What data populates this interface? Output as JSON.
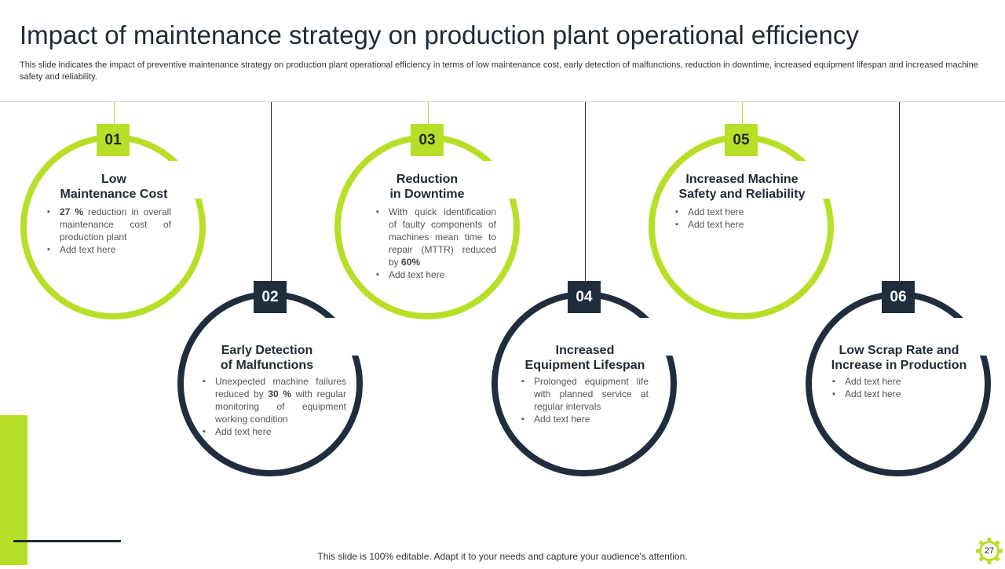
{
  "slide": {
    "title": "Impact of maintenance strategy on production plant operational efficiency",
    "subtitle": "This slide indicates the impact of preventive maintenance strategy on production plant operational efficiency in terms of low maintenance cost, early detection of malfunctions, reduction in downtime, increased equipment lifespan and increased machine safety and reliability.",
    "footer": "This slide is 100% editable. Adapt it to your needs and capture your audience's attention.",
    "page_number": "27"
  },
  "colors": {
    "accent": "#b8df28",
    "dark": "#1f2d3d"
  },
  "cards": [
    {
      "number": "01",
      "title_line1": "Low",
      "title_line2": "Maintenance Cost",
      "bullets": [
        {
          "bold": "27 %",
          "text": " reduction in overall maintenance cost of production plant"
        },
        {
          "bold": "",
          "text": "Add text here"
        }
      ]
    },
    {
      "number": "02",
      "title_line1": "Early Detection",
      "title_line2": "of Malfunctions",
      "bullets": [
        {
          "pre": "Unexpected machine failures reduced by ",
          "bold": "30 %",
          "text": " with regular monitoring of equipment working condition"
        },
        {
          "pre": "",
          "bold": "",
          "text": "Add text here"
        }
      ]
    },
    {
      "number": "03",
      "title_line1": "Reduction",
      "title_line2": "in Downtime",
      "bullets": [
        {
          "pre": "With quick identification of faulty components of machines mean time to repair (MTTR) reduced by ",
          "bold": "60%",
          "text": ""
        },
        {
          "pre": "",
          "bold": "",
          "text": "Add text here"
        }
      ]
    },
    {
      "number": "04",
      "title_line1": "Increased",
      "title_line2": "Equipment Lifespan",
      "bullets": [
        {
          "text": "Prolonged equipment life with planned service at regular intervals"
        },
        {
          "text": "Add text here"
        }
      ]
    },
    {
      "number": "05",
      "title_line1": "Increased Machine",
      "title_line2": "Safety and Reliability",
      "bullets": [
        {
          "text": "Add text here"
        },
        {
          "text": "Add text here"
        }
      ]
    },
    {
      "number": "06",
      "title_line1": "Low Scrap Rate and",
      "title_line2": "Increase in Production",
      "bullets": [
        {
          "text": "Add text here"
        },
        {
          "text": "Add text here"
        }
      ]
    }
  ]
}
